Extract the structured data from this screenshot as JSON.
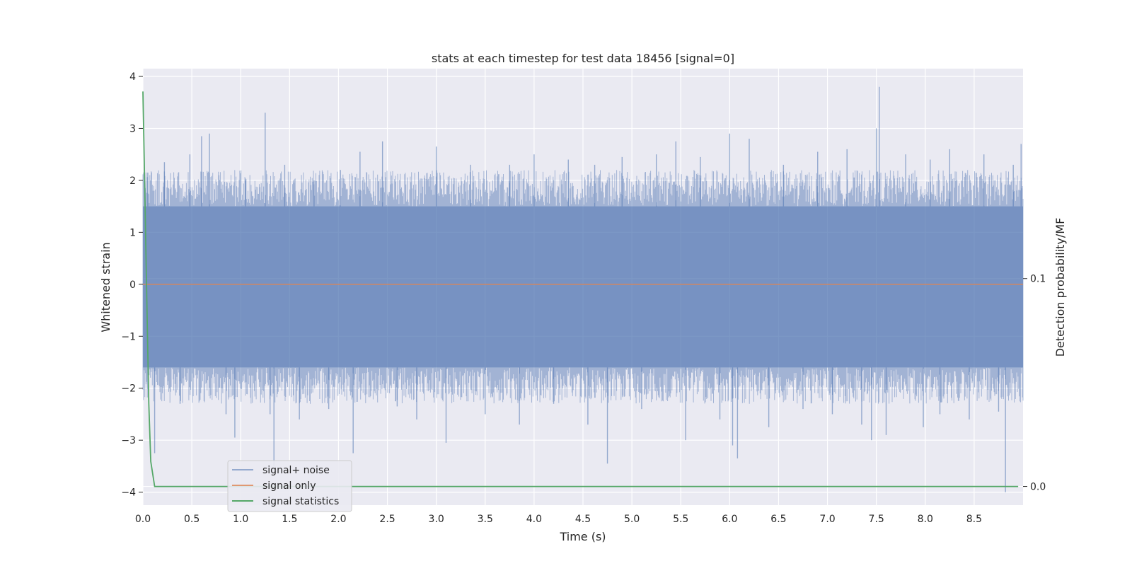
{
  "chart_data": {
    "type": "line",
    "title": "stats at each timestep for test data 18456 [signal=0]",
    "xlabel": "Time (s)",
    "ylabel": "Whitened strain",
    "y2label": "Detection probability/MF",
    "xlim": [
      0.0,
      9.0
    ],
    "ylim": [
      -4.25,
      4.15
    ],
    "y2lim": [
      -0.009,
      0.201
    ],
    "x_ticks": [
      "0.0",
      "0.5",
      "1.0",
      "1.5",
      "2.0",
      "2.5",
      "3.0",
      "3.5",
      "4.0",
      "4.5",
      "5.0",
      "5.5",
      "6.0",
      "6.5",
      "7.0",
      "7.5",
      "8.0",
      "8.5"
    ],
    "y_ticks": [
      "4",
      "3",
      "2",
      "1",
      "0",
      "−1",
      "−2",
      "−3",
      "−4"
    ],
    "y2_ticks": [
      "0.1",
      "0.0"
    ],
    "grid": true,
    "legend_position": "lower-left",
    "noise": {
      "envelope_upper": 1.5,
      "envelope_lower": -1.6,
      "spikes": [
        {
          "x": 0.05,
          "y": 2.15
        },
        {
          "x": 0.12,
          "y": -3.25
        },
        {
          "x": 0.22,
          "y": 2.35
        },
        {
          "x": 0.38,
          "y": -2.3
        },
        {
          "x": 0.48,
          "y": 2.5
        },
        {
          "x": 0.6,
          "y": 2.85
        },
        {
          "x": 0.68,
          "y": 2.9
        },
        {
          "x": 0.85,
          "y": -2.5
        },
        {
          "x": 0.94,
          "y": -2.95
        },
        {
          "x": 1.05,
          "y": 2.0
        },
        {
          "x": 1.25,
          "y": 3.3
        },
        {
          "x": 1.3,
          "y": -2.5
        },
        {
          "x": 1.34,
          "y": -3.5
        },
        {
          "x": 1.45,
          "y": 2.3
        },
        {
          "x": 1.6,
          "y": -2.6
        },
        {
          "x": 1.75,
          "y": 2.0
        },
        {
          "x": 1.9,
          "y": -2.4
        },
        {
          "x": 2.02,
          "y": 2.2
        },
        {
          "x": 2.15,
          "y": -3.25
        },
        {
          "x": 2.22,
          "y": 2.55
        },
        {
          "x": 2.45,
          "y": 2.75
        },
        {
          "x": 2.6,
          "y": -2.35
        },
        {
          "x": 2.8,
          "y": -2.6
        },
        {
          "x": 3.0,
          "y": 2.65
        },
        {
          "x": 3.1,
          "y": -3.05
        },
        {
          "x": 3.35,
          "y": 2.3
        },
        {
          "x": 3.5,
          "y": -2.5
        },
        {
          "x": 3.75,
          "y": 2.3
        },
        {
          "x": 3.85,
          "y": -2.7
        },
        {
          "x": 4.0,
          "y": 2.5
        },
        {
          "x": 4.2,
          "y": -2.3
        },
        {
          "x": 4.35,
          "y": 2.4
        },
        {
          "x": 4.55,
          "y": -2.7
        },
        {
          "x": 4.62,
          "y": 2.3
        },
        {
          "x": 4.75,
          "y": -3.45
        },
        {
          "x": 4.9,
          "y": 2.45
        },
        {
          "x": 5.1,
          "y": -2.4
        },
        {
          "x": 5.25,
          "y": 2.5
        },
        {
          "x": 5.45,
          "y": 2.75
        },
        {
          "x": 5.55,
          "y": -3.0
        },
        {
          "x": 5.7,
          "y": 2.45
        },
        {
          "x": 5.9,
          "y": -2.6
        },
        {
          "x": 6.0,
          "y": 2.9
        },
        {
          "x": 6.03,
          "y": -3.1
        },
        {
          "x": 6.08,
          "y": -3.35
        },
        {
          "x": 6.2,
          "y": 2.8
        },
        {
          "x": 6.4,
          "y": -2.75
        },
        {
          "x": 6.55,
          "y": 2.3
        },
        {
          "x": 6.75,
          "y": -2.4
        },
        {
          "x": 6.9,
          "y": 2.55
        },
        {
          "x": 7.05,
          "y": -2.5
        },
        {
          "x": 7.2,
          "y": 2.6
        },
        {
          "x": 7.35,
          "y": -2.7
        },
        {
          "x": 7.45,
          "y": -3.0
        },
        {
          "x": 7.5,
          "y": 3.0
        },
        {
          "x": 7.53,
          "y": 3.8
        },
        {
          "x": 7.6,
          "y": -2.9
        },
        {
          "x": 7.8,
          "y": 2.5
        },
        {
          "x": 7.98,
          "y": -2.75
        },
        {
          "x": 8.05,
          "y": 2.4
        },
        {
          "x": 8.15,
          "y": -2.5
        },
        {
          "x": 8.25,
          "y": 2.6
        },
        {
          "x": 8.45,
          "y": -2.6
        },
        {
          "x": 8.6,
          "y": 2.5
        },
        {
          "x": 8.75,
          "y": -2.45
        },
        {
          "x": 8.82,
          "y": -4.0
        },
        {
          "x": 8.9,
          "y": 2.3
        },
        {
          "x": 8.98,
          "y": 2.7
        }
      ]
    },
    "series": [
      {
        "name": "signal+ noise",
        "color": "#4c72b0",
        "style": "dense-noise"
      },
      {
        "name": "signal only",
        "color": "#dd8452",
        "x": [
          0.0,
          9.0
        ],
        "y": [
          0.0,
          0.0
        ]
      },
      {
        "name": "signal statistics",
        "color": "#55a868",
        "axis": "right",
        "x": [
          0.0,
          0.02,
          0.04,
          0.06,
          0.08,
          0.12,
          0.5,
          1.0,
          2.0,
          3.0,
          4.0,
          5.0,
          6.0,
          7.0,
          8.0,
          8.95
        ],
        "y": [
          0.19,
          0.14,
          0.09,
          0.04,
          0.012,
          0.0,
          0.0,
          0.0,
          0.0,
          0.0,
          0.0,
          0.0,
          0.0,
          0.0,
          0.0,
          0.0
        ]
      }
    ]
  }
}
